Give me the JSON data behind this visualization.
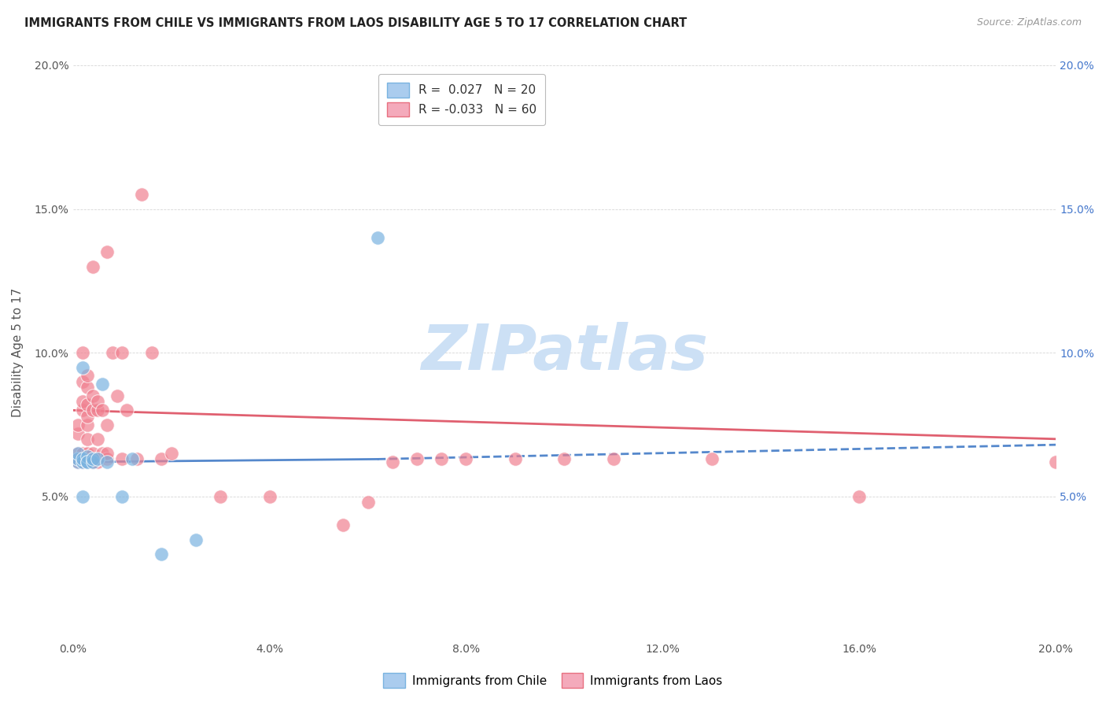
{
  "title": "IMMIGRANTS FROM CHILE VS IMMIGRANTS FROM LAOS DISABILITY AGE 5 TO 17 CORRELATION CHART",
  "source": "Source: ZipAtlas.com",
  "ylabel": "Disability Age 5 to 17",
  "xlim": [
    0.0,
    0.2
  ],
  "ylim": [
    0.0,
    0.2
  ],
  "xticks": [
    0.0,
    0.04,
    0.08,
    0.12,
    0.16,
    0.2
  ],
  "yticks_left": [
    0.0,
    0.05,
    0.1,
    0.15,
    0.2
  ],
  "yticks_right": [
    0.05,
    0.1,
    0.15,
    0.2
  ],
  "xticklabels": [
    "0.0%",
    "4.0%",
    "8.0%",
    "12.0%",
    "16.0%",
    "20.0%"
  ],
  "yticklabels_left": [
    "",
    "5.0%",
    "10.0%",
    "15.0%",
    "20.0%"
  ],
  "yticklabels_right": [
    "5.0%",
    "10.0%",
    "15.0%",
    "20.0%"
  ],
  "chile_color": "#7ab3e0",
  "laos_color": "#f08090",
  "chile_trend_color": "#5588cc",
  "laos_trend_color": "#e06070",
  "watermark": "ZIPatlas",
  "watermark_color": "#cce0f5",
  "chile_trend_start_x": 0.0,
  "chile_trend_start_y": 0.062,
  "chile_trend_end_x": 0.062,
  "chile_trend_end_y": 0.063,
  "chile_trend_dash_end_x": 0.2,
  "chile_trend_dash_end_y": 0.068,
  "laos_trend_start_x": 0.0,
  "laos_trend_start_y": 0.08,
  "laos_trend_end_x": 0.2,
  "laos_trend_end_y": 0.07,
  "chile_points_x": [
    0.001,
    0.001,
    0.001,
    0.002,
    0.002,
    0.002,
    0.002,
    0.003,
    0.003,
    0.003,
    0.004,
    0.004,
    0.005,
    0.006,
    0.007,
    0.01,
    0.012,
    0.018,
    0.025,
    0.062
  ],
  "chile_points_y": [
    0.062,
    0.063,
    0.065,
    0.062,
    0.063,
    0.05,
    0.095,
    0.062,
    0.064,
    0.062,
    0.062,
    0.063,
    0.063,
    0.089,
    0.062,
    0.05,
    0.063,
    0.03,
    0.035,
    0.14
  ],
  "laos_points_x": [
    0.001,
    0.001,
    0.001,
    0.001,
    0.001,
    0.002,
    0.002,
    0.002,
    0.002,
    0.002,
    0.002,
    0.002,
    0.003,
    0.003,
    0.003,
    0.003,
    0.003,
    0.003,
    0.003,
    0.003,
    0.004,
    0.004,
    0.004,
    0.004,
    0.004,
    0.005,
    0.005,
    0.005,
    0.005,
    0.005,
    0.006,
    0.006,
    0.007,
    0.007,
    0.007,
    0.007,
    0.008,
    0.009,
    0.01,
    0.01,
    0.011,
    0.013,
    0.014,
    0.016,
    0.018,
    0.02,
    0.03,
    0.04,
    0.055,
    0.06,
    0.065,
    0.07,
    0.075,
    0.08,
    0.09,
    0.1,
    0.11,
    0.13,
    0.16,
    0.2
  ],
  "laos_points_y": [
    0.062,
    0.063,
    0.065,
    0.072,
    0.075,
    0.062,
    0.063,
    0.065,
    0.08,
    0.083,
    0.09,
    0.1,
    0.063,
    0.065,
    0.07,
    0.075,
    0.078,
    0.082,
    0.088,
    0.092,
    0.062,
    0.065,
    0.08,
    0.085,
    0.13,
    0.062,
    0.063,
    0.07,
    0.08,
    0.083,
    0.065,
    0.08,
    0.063,
    0.065,
    0.075,
    0.135,
    0.1,
    0.085,
    0.063,
    0.1,
    0.08,
    0.063,
    0.155,
    0.1,
    0.063,
    0.065,
    0.05,
    0.05,
    0.04,
    0.048,
    0.062,
    0.063,
    0.063,
    0.063,
    0.063,
    0.063,
    0.063,
    0.063,
    0.05,
    0.062
  ]
}
